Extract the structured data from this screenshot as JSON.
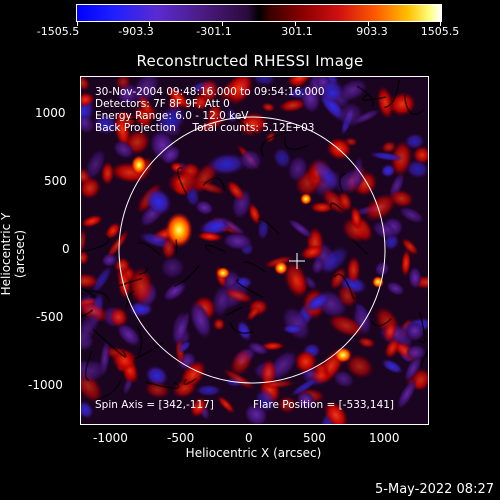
{
  "colorbar": {
    "tick_labels": [
      "-1505.5",
      "-903.3",
      "-301.1",
      "301.1",
      "903.3",
      "1505.5"
    ]
  },
  "plot": {
    "title": "Reconstructed RHESSI Image",
    "x_label": "Heliocentric X (arcsec)",
    "y_label": "Heliocentric Y (arcsec)",
    "x_ticks": [
      "-1000",
      "-500",
      "0",
      "500",
      "1000"
    ],
    "y_ticks": [
      "1000",
      "500",
      "0",
      "-500",
      "-1000"
    ],
    "info_lines": [
      "30-Nov-2004 09:48:16.000 to 09:54:16.000",
      "Detectors: 7F 8F 9F, Att 0",
      "Energy Range: 6.0 - 12.0 keV",
      "Back Projection     Total counts: 5.12E+03"
    ],
    "spin_axis": "Spin Axis = [342,-117]",
    "flare_position": "Flare Position = [-533,141]"
  },
  "footer": {
    "date": "5-May-2022 08:27"
  },
  "colors": {
    "background": "#000000",
    "foreground": "#ffffff"
  }
}
